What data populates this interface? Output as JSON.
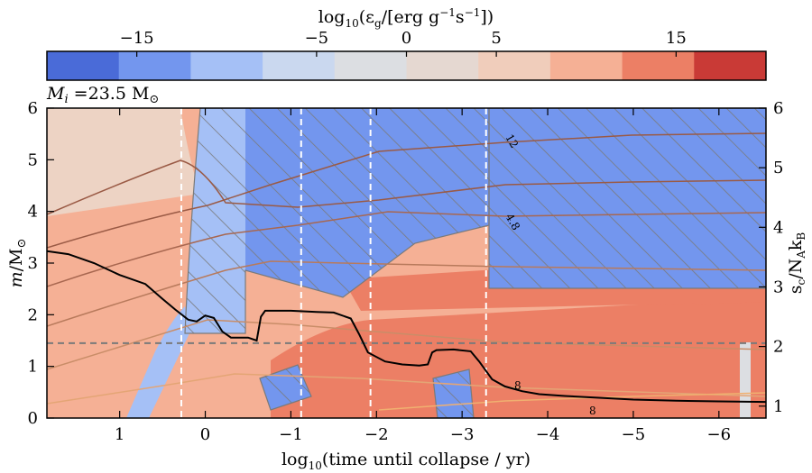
{
  "colorbar": {
    "label_prefix": "log",
    "label_sub": "10",
    "label_body": "(ε",
    "label_g": "g",
    "label_units": "/[erg g",
    "label_exp1": "−1",
    "label_s": "s",
    "label_exp2": "−1",
    "label_close": "])",
    "levels": [
      -20,
      -15,
      -10,
      -5,
      0,
      5,
      10,
      15,
      20
    ],
    "segment_colors": [
      "#4a6bd8",
      "#7396ee",
      "#a5c0f6",
      "#cad8ef",
      "#dcdee2",
      "#e5d8d1",
      "#f0cdbb",
      "#f5b095",
      "#ec7f65",
      "#c93a36"
    ],
    "tick_labels": [
      {
        "value": -15,
        "text": "−15"
      },
      {
        "value": -5,
        "text": "−5"
      },
      {
        "value": 0,
        "text": "0"
      },
      {
        "value": 5,
        "text": "5"
      },
      {
        "value": 15,
        "text": "15"
      }
    ]
  },
  "mass_label": {
    "M": "M",
    "i": "i",
    "eq": " =23.5 M",
    "sun": "⊙"
  },
  "chart_data": {
    "type": "heatmap",
    "xlabel_prefix": "log",
    "xlabel_sub": "10",
    "xlabel_body": "(time until collapse / yr)",
    "ylabel_left_m": "m",
    "ylabel_left_rest": "/M",
    "ylabel_left_sun": "⊙",
    "ylabel_right_s": "s",
    "ylabel_right_c": "c",
    "ylabel_right_rest": "/N",
    "ylabel_right_A": "A",
    "ylabel_right_k": "k",
    "ylabel_right_B": "B",
    "xlim": [
      1.85,
      -6.55
    ],
    "ylim": [
      0,
      6
    ],
    "y2lim": [
      0.8,
      6
    ],
    "x_ticks": [
      {
        "value": 1,
        "text": "1"
      },
      {
        "value": 0,
        "text": "0"
      },
      {
        "value": -1,
        "text": "−1"
      },
      {
        "value": -2,
        "text": "−2"
      },
      {
        "value": -3,
        "text": "−3"
      },
      {
        "value": -4,
        "text": "−4"
      },
      {
        "value": -5,
        "text": "−5"
      },
      {
        "value": -6,
        "text": "−6"
      }
    ],
    "y_ticks": [
      0,
      1,
      2,
      3,
      4,
      5,
      6
    ],
    "y2_ticks": [
      1,
      2,
      3,
      4,
      5,
      6
    ],
    "horizontal_dashed_line": 1.45,
    "vertical_dashed_lines": [
      0.28,
      -1.12,
      -1.93,
      -3.28
    ],
    "central_entropy_curve": {
      "x": [
        1.85,
        1.6,
        1.3,
        1.0,
        0.7,
        0.5,
        0.35,
        0.2,
        0.1,
        0.0,
        -0.1,
        -0.2,
        -0.3,
        -0.5,
        -0.6,
        -0.65,
        -0.7,
        -1.0,
        -1.3,
        -1.5,
        -1.7,
        -1.8,
        -1.9,
        -2.1,
        -2.3,
        -2.5,
        -2.6,
        -2.65,
        -2.7,
        -2.9,
        -3.1,
        -3.2,
        -3.35,
        -3.5,
        -3.7,
        -3.9,
        -4.2,
        -4.6,
        -5.0,
        -5.5,
        -6.0,
        -6.55
      ],
      "y": [
        3.6,
        3.55,
        3.4,
        3.2,
        3.05,
        2.8,
        2.62,
        2.45,
        2.42,
        2.52,
        2.48,
        2.25,
        2.15,
        2.15,
        2.1,
        2.5,
        2.6,
        2.6,
        2.58,
        2.57,
        2.47,
        2.2,
        1.9,
        1.75,
        1.7,
        1.68,
        1.7,
        1.9,
        1.94,
        1.95,
        1.92,
        1.75,
        1.45,
        1.33,
        1.25,
        1.2,
        1.17,
        1.14,
        1.11,
        1.09,
        1.08,
        1.07
      ]
    },
    "regions": [
      {
        "name": "outer envelope",
        "level": 5
      },
      {
        "name": "convective shell",
        "level": -10
      },
      {
        "name": "burning core",
        "level": 10
      },
      {
        "name": "hatched convective zones",
        "level": -15
      }
    ],
    "contour_labels": [
      "12",
      "4.8",
      "8",
      "8"
    ]
  }
}
